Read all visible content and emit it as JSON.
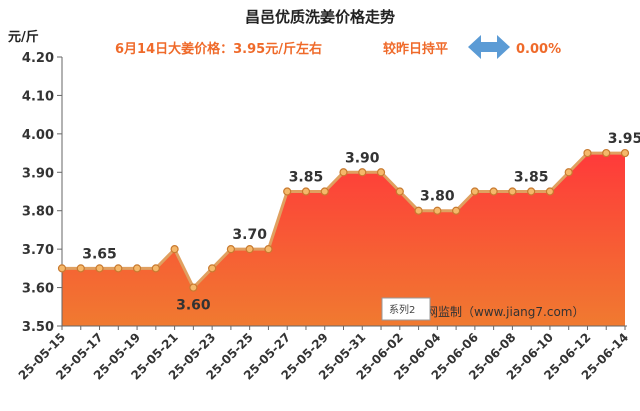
{
  "header": {
    "title": "昌邑优质洗姜价格走势",
    "unit": "元/斤",
    "price_note": "6月14日大姜价格：3.95元/斤左右",
    "change_label": "较昨日持平",
    "change_value": "0.00%"
  },
  "watermark": "网监制（www.jiang7.com）",
  "legend_label": "系列2",
  "colors": {
    "accent": "#ef6a2a",
    "area_top": "#ff3a3a",
    "area_bottom": "#f07a30",
    "line": "#e0a060",
    "arrow": "#5b9bd5"
  },
  "chart_data": {
    "type": "area",
    "title": "昌邑优质洗姜价格走势",
    "ylabel": "元/斤",
    "ylim": [
      3.5,
      4.2
    ],
    "yticks": [
      "3.50",
      "3.60",
      "3.70",
      "3.80",
      "3.90",
      "4.00",
      "4.10",
      "4.20"
    ],
    "xticks": [
      "25-05-15",
      "25-05-17",
      "25-05-19",
      "25-05-21",
      "25-05-23",
      "25-05-25",
      "25-05-27",
      "25-05-29",
      "25-05-31",
      "25-06-02",
      "25-06-04",
      "25-06-06",
      "25-06-08",
      "25-06-10",
      "25-06-12",
      "25-06-14"
    ],
    "x": [
      "25-05-15",
      "25-05-16",
      "25-05-17",
      "25-05-18",
      "25-05-19",
      "25-05-20",
      "25-05-21",
      "25-05-22",
      "25-05-23",
      "25-05-24",
      "25-05-25",
      "25-05-26",
      "25-05-27",
      "25-05-28",
      "25-05-29",
      "25-05-30",
      "25-05-31",
      "25-06-01",
      "25-06-02",
      "25-06-03",
      "25-06-04",
      "25-06-05",
      "25-06-06",
      "25-06-07",
      "25-06-08",
      "25-06-09",
      "25-06-10",
      "25-06-11",
      "25-06-12",
      "25-06-13",
      "25-06-14"
    ],
    "values": [
      3.65,
      3.65,
      3.65,
      3.65,
      3.65,
      3.65,
      3.7,
      3.6,
      3.65,
      3.7,
      3.7,
      3.7,
      3.85,
      3.85,
      3.85,
      3.9,
      3.9,
      3.9,
      3.85,
      3.8,
      3.8,
      3.8,
      3.85,
      3.85,
      3.85,
      3.85,
      3.85,
      3.9,
      3.95,
      3.95,
      3.95
    ],
    "data_labels": [
      {
        "index": 2,
        "text": "3.65"
      },
      {
        "index": 7,
        "text": "3.60"
      },
      {
        "index": 10,
        "text": "3.70"
      },
      {
        "index": 13,
        "text": "3.85"
      },
      {
        "index": 16,
        "text": "3.90"
      },
      {
        "index": 20,
        "text": "3.80"
      },
      {
        "index": 25,
        "text": "3.85"
      },
      {
        "index": 30,
        "text": "3.95"
      }
    ],
    "grid": false
  }
}
